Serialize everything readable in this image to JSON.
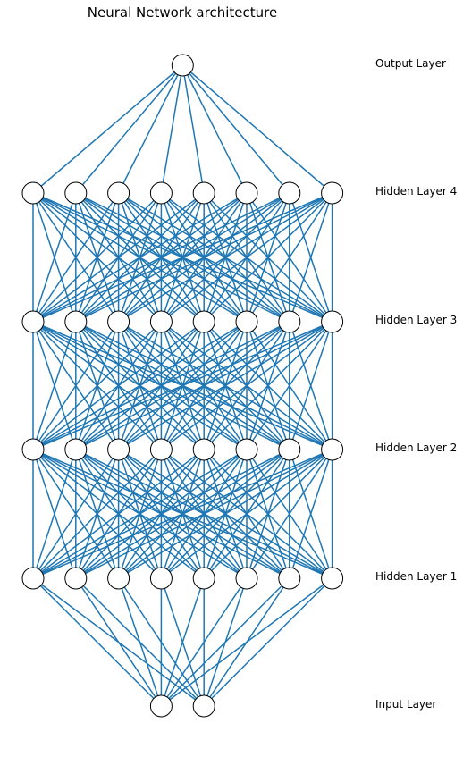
{
  "title": "Neural Network architecture",
  "colors": {
    "edge": "#1f77b4",
    "node_fill": "#ffffff",
    "node_stroke": "#000000"
  },
  "layers": [
    {
      "label": "Input Layer",
      "nodes": 2
    },
    {
      "label": "Hidden Layer 1",
      "nodes": 8
    },
    {
      "label": "Hidden Layer 2",
      "nodes": 8
    },
    {
      "label": "Hidden Layer 3",
      "nodes": 8
    },
    {
      "label": "Hidden Layer 4",
      "nodes": 8
    },
    {
      "label": "Output Layer",
      "nodes": 1
    }
  ],
  "connectivity": "fully-connected"
}
